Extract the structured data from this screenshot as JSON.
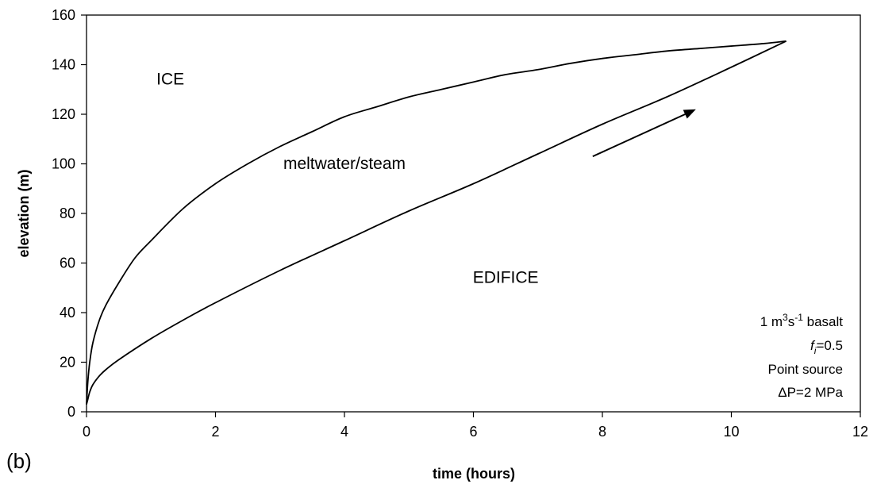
{
  "panel_label": "(b)",
  "chart_data": {
    "type": "line",
    "title": "",
    "xlabel": "time (hours)",
    "ylabel": "elevation (m)",
    "xlim": [
      0,
      12
    ],
    "ylim": [
      0,
      160
    ],
    "xticks": [
      0,
      2,
      4,
      6,
      8,
      10,
      12
    ],
    "yticks": [
      0,
      20,
      40,
      60,
      80,
      100,
      120,
      140,
      160
    ],
    "grid": false,
    "series": [
      {
        "color": "#000000",
        "x": [
          0,
          0.02,
          0.05,
          0.1,
          0.2,
          0.3,
          0.5,
          0.75,
          1,
          1.5,
          2,
          2.5,
          3,
          3.5,
          4,
          4.5,
          5,
          5.5,
          6,
          6.5,
          7,
          7.5,
          8,
          8.5,
          9,
          9.5,
          10,
          10.5,
          10.85
        ],
        "y": [
          3,
          12,
          20,
          28,
          37,
          43,
          52,
          62,
          69,
          82,
          92,
          100,
          107,
          113,
          119,
          123,
          127,
          130,
          133,
          136,
          138,
          140.5,
          142.5,
          144,
          145.5,
          146.5,
          147.5,
          148.5,
          149.5
        ]
      },
      {
        "color": "#000000",
        "x": [
          0,
          0.02,
          0.05,
          0.1,
          0.2,
          0.3,
          0.5,
          1,
          1.5,
          2,
          3,
          4,
          5,
          6,
          7,
          8,
          9,
          10,
          10.85
        ],
        "y": [
          3,
          5,
          8,
          11,
          14.5,
          17,
          21,
          29.5,
          37,
          44,
          57,
          69,
          81,
          92,
          104,
          116,
          127,
          139,
          149.5
        ]
      }
    ],
    "annotations": {
      "regions": [
        {
          "text": "ICE",
          "x": 1.3,
          "y": 132
        },
        {
          "text": "meltwater/steam",
          "x": 4.0,
          "y": 98
        },
        {
          "text": "EDIFICE",
          "x": 6.5,
          "y": 52
        }
      ],
      "arrow": {
        "from": [
          7.85,
          103
        ],
        "to": [
          9.45,
          122
        ]
      },
      "notes": {
        "line1_base": "1 m",
        "line1_sup1": "3",
        "line1_mid": "s",
        "line1_sup2": "-1",
        "line1_end": " basalt",
        "line2_italic": "f",
        "line2_sub": "i",
        "line2_rest": "=0.5",
        "line3": "Point source",
        "line4": "ΔP=2 MPa"
      }
    }
  }
}
